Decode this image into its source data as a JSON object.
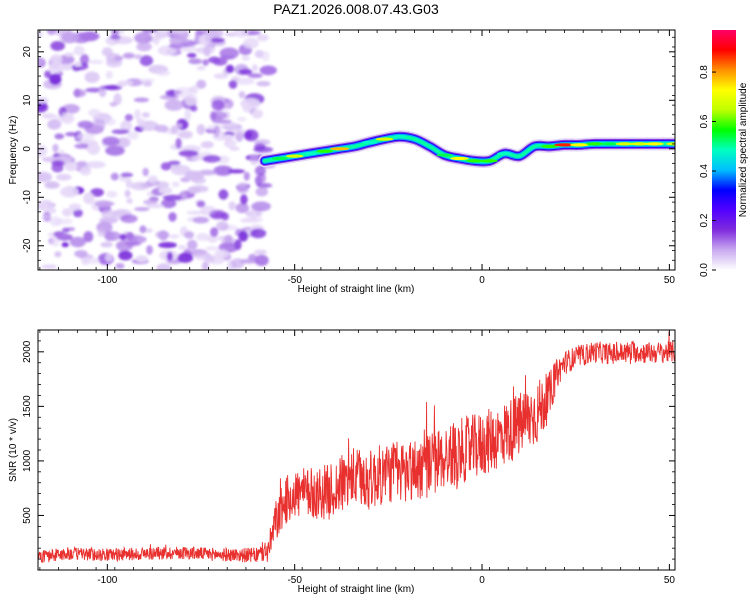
{
  "figure_title": "PAZ1.2026.008.07.43.G03",
  "chart_data": [
    {
      "type": "heatmap",
      "title": "PAZ1.2026.008.07.43.G03",
      "xlabel": "Height of straight line (km)",
      "ylabel": "Frequency (Hz)",
      "xlim": [
        -118.5,
        51.5
      ],
      "ylim": [
        -25,
        24.5
      ],
      "x_ticks": [
        -100,
        -50,
        0,
        50
      ],
      "x_tick_labels": [
        "-100",
        "-50",
        "0",
        "50"
      ],
      "y_ticks": [
        -20,
        -10,
        0,
        10,
        20
      ],
      "y_tick_labels": [
        "-20",
        "-10",
        "0",
        "10",
        "20"
      ],
      "noise_region": {
        "x_range": [
          -118.5,
          -57
        ],
        "frequency_range": [
          -25,
          24.5
        ],
        "typical_amplitude": 0.1
      },
      "signal_track": {
        "x": [
          -58,
          -54,
          -50,
          -46,
          -42,
          -38,
          -34,
          -30,
          -26,
          -22,
          -18,
          -14,
          -10,
          -6,
          -2,
          2,
          6,
          10,
          14,
          18,
          22,
          26,
          30,
          34,
          38,
          42,
          46,
          51.5
        ],
        "frequency": [
          -2.5,
          -2.0,
          -1.5,
          -1.0,
          -0.5,
          0.0,
          0.5,
          1.3,
          2.0,
          2.5,
          2.0,
          0.5,
          -1.3,
          -2.0,
          -2.5,
          -2.5,
          -1.0,
          -1.5,
          0.5,
          0.5,
          0.8,
          0.8,
          1.0,
          1.0,
          1.0,
          1.0,
          1.0,
          1.0
        ],
        "amplitude": [
          0.3,
          0.55,
          0.7,
          0.5,
          0.6,
          0.8,
          0.4,
          0.5,
          0.7,
          0.5,
          0.35,
          0.4,
          0.55,
          0.75,
          0.6,
          0.6,
          0.5,
          0.45,
          0.4,
          0.6,
          0.9,
          0.75,
          0.6,
          0.55,
          0.7,
          0.7,
          0.75,
          0.7
        ]
      },
      "colorbar": {
        "label": "Normalized spectral amplitude",
        "range": [
          0.0,
          0.97
        ],
        "ticks": [
          0.0,
          0.2,
          0.4,
          0.6,
          0.8
        ],
        "tick_labels": [
          "0.0",
          "0.2",
          "0.4",
          "0.6",
          "0.8"
        ],
        "colormap": [
          "#ffffff",
          "#c9aaf0",
          "#7f2bdc",
          "#5200ff",
          "#0000ff",
          "#00bfff",
          "#00ffc0",
          "#00ff00",
          "#bfff00",
          "#ffff00",
          "#ff9000",
          "#ff0000",
          "#ff0066"
        ]
      }
    },
    {
      "type": "line",
      "xlabel": "Height of straight line (km)",
      "ylabel": "SNR (10 * v/v)",
      "xlim": [
        -118.5,
        51.5
      ],
      "ylim": [
        0,
        2200
      ],
      "x_ticks": [
        -100,
        -50,
        0,
        50
      ],
      "x_tick_labels": [
        "-100",
        "-50",
        "0",
        "50"
      ],
      "y_ticks": [
        500,
        1000,
        1500,
        2000
      ],
      "y_tick_labels": [
        "500",
        "1000",
        "1500",
        "2000"
      ],
      "line_color": "#e8302e",
      "series": [
        {
          "name": "SNR",
          "x": [
            -118.5,
            -110,
            -100,
            -90,
            -80,
            -70,
            -60,
            -57,
            -55,
            -52,
            -50,
            -45,
            -40,
            -35,
            -30,
            -25,
            -20,
            -15,
            -10,
            -5,
            0,
            5,
            10,
            15,
            18,
            20,
            22,
            25,
            30,
            35,
            40,
            45,
            51.5
          ],
          "values": [
            120,
            150,
            140,
            150,
            160,
            140,
            135,
            180,
            450,
            650,
            700,
            700,
            720,
            850,
            820,
            900,
            900,
            950,
            1030,
            1100,
            1150,
            1230,
            1330,
            1450,
            1600,
            1800,
            1900,
            1950,
            2000,
            1980,
            2000,
            1990,
            2000
          ],
          "noise_amplitude": [
            60,
            60,
            60,
            60,
            60,
            60,
            70,
            120,
            200,
            220,
            230,
            240,
            260,
            280,
            280,
            290,
            300,
            300,
            300,
            300,
            300,
            300,
            300,
            300,
            220,
            140,
            110,
            100,
            100,
            100,
            100,
            100,
            100
          ]
        }
      ]
    }
  ]
}
